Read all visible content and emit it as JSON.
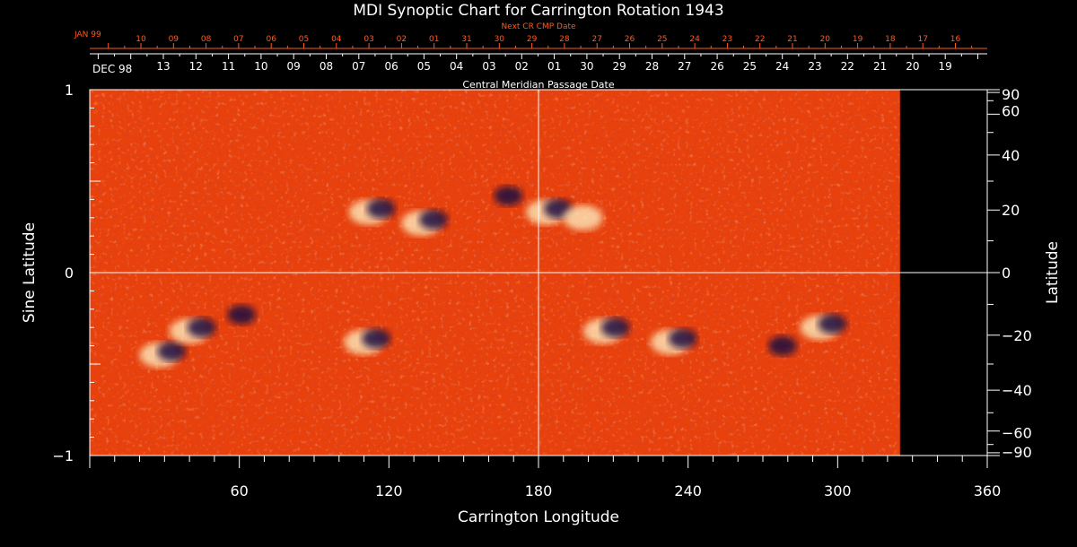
{
  "chart_data": {
    "type": "heatmap",
    "title": "MDI Synoptic Chart for Carrington Rotation 1943",
    "xlabel": "Carrington Longitude",
    "ylabel_left": "Sine Latitude",
    "ylabel_right": "Latitude",
    "xlim": [
      0,
      360
    ],
    "ylim": [
      -1,
      1
    ],
    "x_ticks": [
      60,
      120,
      180,
      240,
      300,
      360
    ],
    "y_ticks_left": [
      {
        "value": 1,
        "label": "1"
      },
      {
        "value": 0,
        "label": "0"
      },
      {
        "value": -1,
        "label": "−1"
      }
    ],
    "y_ticks_right": [
      {
        "value": 90,
        "label": "90"
      },
      {
        "value": 60,
        "label": "60"
      },
      {
        "value": 40,
        "label": "40"
      },
      {
        "value": 20,
        "label": "20"
      },
      {
        "value": 0,
        "label": "0"
      },
      {
        "value": -20,
        "label": "−20"
      },
      {
        "value": -40,
        "label": "−40"
      },
      {
        "value": -60,
        "label": "−60"
      },
      {
        "value": -90,
        "label": "−90"
      }
    ],
    "data_extent_longitude": [
      0,
      325
    ],
    "central_meridian_axis": {
      "label": "Central Meridian Passage Date",
      "start_label": "DEC 98",
      "dates": [
        "13",
        "12",
        "11",
        "10",
        "09",
        "08",
        "07",
        "06",
        "05",
        "04",
        "03",
        "02",
        "01",
        "30",
        "29",
        "28",
        "27",
        "26",
        "25",
        "24",
        "23",
        "22",
        "21",
        "20",
        "19"
      ]
    },
    "next_cr_axis": {
      "label": "Next CR CMP Date",
      "start_label": "JAN 99",
      "dates": [
        "10",
        "09",
        "08",
        "07",
        "06",
        "05",
        "04",
        "03",
        "02",
        "01",
        "31",
        "30",
        "29",
        "28",
        "27",
        "26",
        "25",
        "24",
        "23",
        "22",
        "21",
        "20",
        "19",
        "18",
        "17",
        "16"
      ]
    },
    "colors": {
      "background": "#000000",
      "field_base": "#e8410c",
      "positive_polarity": "#fff6c8",
      "negative_polarity": "#1a1040",
      "axis": "#ffffff",
      "next_cr_axis": "#ff5a1e"
    },
    "active_regions": [
      {
        "lon": 114,
        "lat": 0.33,
        "polarity": "mixed"
      },
      {
        "lon": 135,
        "lat": 0.27,
        "polarity": "mixed"
      },
      {
        "lon": 165,
        "lat": 0.4,
        "polarity": "negative"
      },
      {
        "lon": 185,
        "lat": 0.33,
        "polarity": "mixed"
      },
      {
        "lon": 200,
        "lat": 0.3,
        "polarity": "positive"
      },
      {
        "lon": 30,
        "lat": -0.45,
        "polarity": "mixed"
      },
      {
        "lon": 42,
        "lat": -0.32,
        "polarity": "mixed"
      },
      {
        "lon": 58,
        "lat": -0.25,
        "polarity": "negative"
      },
      {
        "lon": 112,
        "lat": -0.38,
        "polarity": "mixed"
      },
      {
        "lon": 208,
        "lat": -0.32,
        "polarity": "mixed"
      },
      {
        "lon": 235,
        "lat": -0.38,
        "polarity": "mixed"
      },
      {
        "lon": 275,
        "lat": -0.42,
        "polarity": "negative"
      },
      {
        "lon": 295,
        "lat": -0.3,
        "polarity": "mixed"
      }
    ]
  }
}
